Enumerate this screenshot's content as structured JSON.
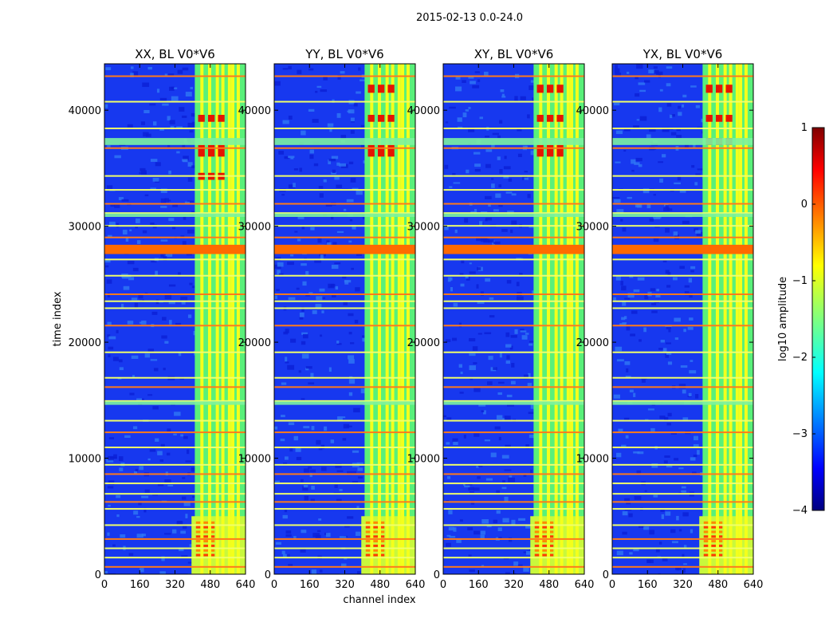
{
  "chart_data": {
    "type": "heatmap",
    "suptitle": "2015-02-13 0.0-24.0",
    "xlabel": "channel index",
    "ylabel": "time index",
    "xlim": [
      0,
      640
    ],
    "ylim": [
      0,
      44000
    ],
    "xticks": [
      "0",
      "160",
      "320",
      "480",
      "640"
    ],
    "yticks": [
      "0",
      "10000",
      "20000",
      "30000",
      "40000"
    ],
    "panels": [
      {
        "title": "XX, BL V0*V6",
        "plateau_start": 410,
        "onset_start": 395,
        "red_blocks": [
          [
            36000,
            37000
          ],
          [
            39000,
            39600
          ],
          [
            34000,
            34600
          ]
        ]
      },
      {
        "title": "YY, BL V0*V6",
        "plateau_start": 410,
        "onset_start": 395,
        "red_blocks": [
          [
            41500,
            42200
          ],
          [
            39000,
            39600
          ],
          [
            36000,
            37000
          ]
        ]
      },
      {
        "title": "XY, BL V0*V6",
        "plateau_start": 410,
        "onset_start": 395,
        "red_blocks": [
          [
            41500,
            42200
          ],
          [
            39000,
            39600
          ],
          [
            36000,
            37000
          ]
        ]
      },
      {
        "title": "YX, BL V0*V6",
        "plateau_start": 410,
        "onset_start": 395,
        "red_blocks": [
          [
            41500,
            42200
          ],
          [
            39000,
            39600
          ],
          [
            37000,
            37600
          ]
        ]
      }
    ],
    "colorbar": {
      "label": "log10 amplitude",
      "vmin": -4,
      "vmax": 1,
      "ticks": [
        "1",
        "0",
        "−1",
        "−2",
        "−3",
        "−4"
      ]
    }
  }
}
